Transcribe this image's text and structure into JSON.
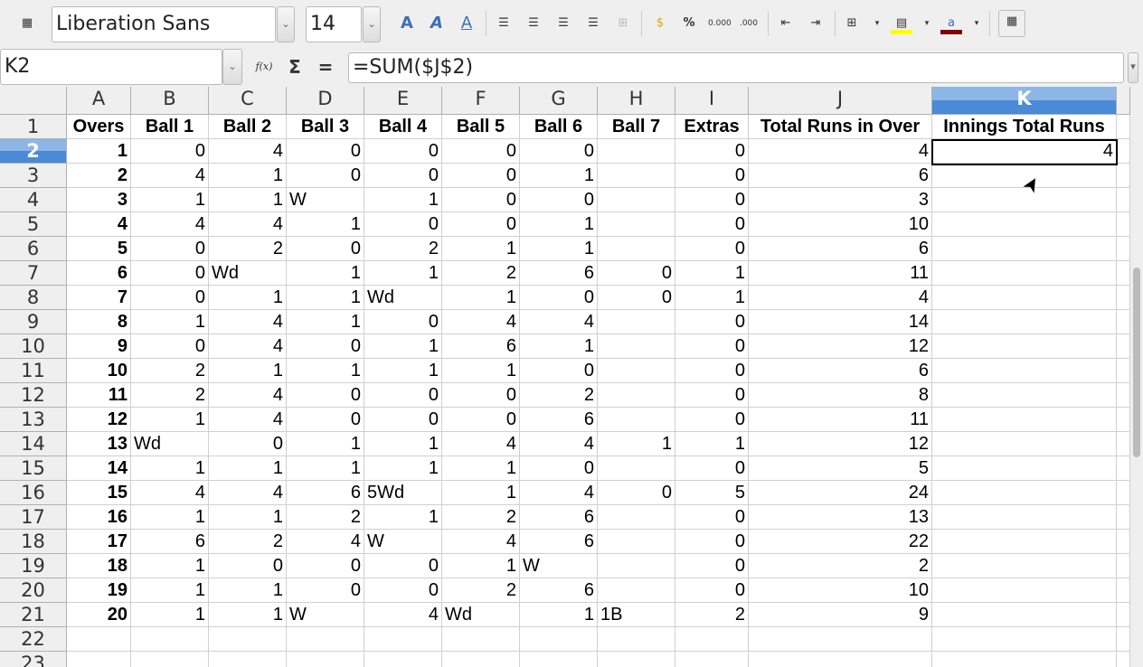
{
  "toolbar": {
    "font_name": "Liberation Sans",
    "font_size": "14",
    "icons": [
      "styles-icon",
      "bold-shadow-icon",
      "italic-outline-icon",
      "underline-icon",
      "align-left-icon",
      "align-center-icon",
      "align-right-icon",
      "justify-icon",
      "merge-cells-icon",
      "currency-icon",
      "percent-icon",
      "add-decimal-icon",
      "delete-decimal-icon",
      "decrease-indent-icon",
      "increase-indent-icon",
      "borders-icon",
      "background-color-icon",
      "font-color-icon",
      "freeze-icon"
    ],
    "percent": "%",
    "add_decimal": "0.000",
    "delete_decimal": ".000"
  },
  "formula_bar": {
    "name_box": "K2",
    "fx": "f(x)",
    "sigma": "Σ",
    "equals": "=",
    "formula": "=SUM($J$2)"
  },
  "columns": [
    "A",
    "B",
    "C",
    "D",
    "E",
    "F",
    "G",
    "H",
    "I",
    "J",
    "K"
  ],
  "selected_cell": "K2",
  "rows": [
    [
      "Overs",
      "Ball 1",
      "Ball 2",
      "Ball 3",
      "Ball 4",
      "Ball 5",
      "Ball 6",
      "Ball 7",
      "Extras",
      "Total Runs in Over",
      "Innings Total Runs"
    ],
    [
      1,
      0,
      4,
      0,
      0,
      0,
      0,
      "",
      0,
      4,
      4
    ],
    [
      2,
      4,
      1,
      0,
      0,
      0,
      1,
      "",
      0,
      6,
      ""
    ],
    [
      3,
      1,
      1,
      "W",
      1,
      0,
      0,
      "",
      0,
      3,
      ""
    ],
    [
      4,
      4,
      4,
      1,
      0,
      0,
      1,
      "",
      0,
      10,
      ""
    ],
    [
      5,
      0,
      2,
      0,
      2,
      1,
      1,
      "",
      0,
      6,
      ""
    ],
    [
      6,
      0,
      "Wd",
      1,
      1,
      2,
      6,
      0,
      1,
      11,
      ""
    ],
    [
      7,
      0,
      1,
      1,
      "Wd",
      1,
      0,
      0,
      1,
      4,
      ""
    ],
    [
      8,
      1,
      4,
      1,
      0,
      4,
      4,
      "",
      0,
      14,
      ""
    ],
    [
      9,
      0,
      4,
      0,
      1,
      6,
      1,
      "",
      0,
      12,
      ""
    ],
    [
      10,
      2,
      1,
      1,
      1,
      1,
      0,
      "",
      0,
      6,
      ""
    ],
    [
      11,
      2,
      4,
      0,
      0,
      0,
      2,
      "",
      0,
      8,
      ""
    ],
    [
      12,
      1,
      4,
      0,
      0,
      0,
      6,
      "",
      0,
      11,
      ""
    ],
    [
      13,
      "Wd",
      0,
      1,
      1,
      4,
      4,
      1,
      1,
      12,
      ""
    ],
    [
      14,
      1,
      1,
      1,
      1,
      1,
      0,
      "",
      0,
      5,
      ""
    ],
    [
      15,
      4,
      4,
      6,
      "5Wd",
      1,
      4,
      0,
      5,
      24,
      ""
    ],
    [
      16,
      1,
      1,
      2,
      1,
      2,
      6,
      "",
      0,
      13,
      ""
    ],
    [
      17,
      6,
      2,
      4,
      "W",
      4,
      6,
      "",
      0,
      22,
      ""
    ],
    [
      18,
      1,
      0,
      0,
      0,
      1,
      "W",
      "",
      0,
      2,
      ""
    ],
    [
      19,
      1,
      1,
      0,
      0,
      2,
      6,
      "",
      0,
      10,
      ""
    ],
    [
      20,
      1,
      1,
      "W",
      4,
      "Wd",
      1,
      "1B",
      2,
      9,
      ""
    ],
    [
      "",
      "",
      "",
      "",
      "",
      "",
      "",
      "",
      "",
      "",
      ""
    ],
    [
      "",
      "",
      "",
      "",
      "",
      "",
      "",
      "",
      "",
      "",
      ""
    ]
  ]
}
